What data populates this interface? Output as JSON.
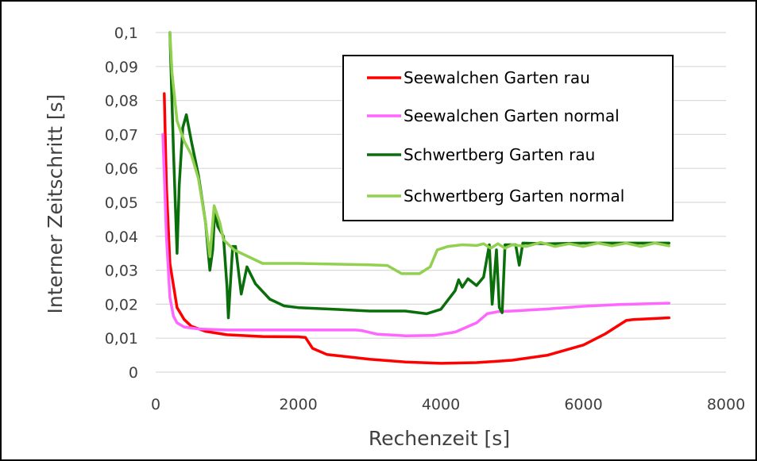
{
  "chart_data": {
    "type": "line",
    "title": "",
    "xlabel": "Rechenzeit [s]",
    "ylabel": "Interner Zeitschritt [s]",
    "xlim": [
      0,
      8000
    ],
    "ylim": [
      0,
      0.1
    ],
    "x_ticks": [
      0,
      2000,
      4000,
      6000,
      8000
    ],
    "x_tick_labels": [
      "0",
      "2000",
      "4000",
      "6000",
      "8000"
    ],
    "y_ticks": [
      0,
      0.01,
      0.02,
      0.03,
      0.04,
      0.05,
      0.06,
      0.07,
      0.08,
      0.09,
      0.1
    ],
    "y_tick_labels": [
      "0",
      "0,01",
      "0,02",
      "0,03",
      "0,04",
      "0,05",
      "0,06",
      "0,07",
      "0,08",
      "0,09",
      "0,1"
    ],
    "grid": "horizontal",
    "legend_position": "top-right",
    "series": [
      {
        "name": "Seewalchen Garten rau",
        "color": "#ff0000",
        "points": [
          [
            120,
            0.082
          ],
          [
            150,
            0.055
          ],
          [
            200,
            0.032
          ],
          [
            300,
            0.019
          ],
          [
            400,
            0.0155
          ],
          [
            500,
            0.0135
          ],
          [
            700,
            0.012
          ],
          [
            1000,
            0.011
          ],
          [
            1500,
            0.0105
          ],
          [
            2000,
            0.0104
          ],
          [
            2100,
            0.0102
          ],
          [
            2200,
            0.007
          ],
          [
            2400,
            0.0052
          ],
          [
            3000,
            0.0038
          ],
          [
            3500,
            0.003
          ],
          [
            4000,
            0.0026
          ],
          [
            4500,
            0.0028
          ],
          [
            5000,
            0.0035
          ],
          [
            5500,
            0.005
          ],
          [
            6000,
            0.008
          ],
          [
            6300,
            0.0112
          ],
          [
            6600,
            0.0152
          ],
          [
            6700,
            0.0155
          ],
          [
            7200,
            0.016
          ]
        ]
      },
      {
        "name": "Seewalchen Garten normal",
        "color": "#ff66ff",
        "points": [
          [
            100,
            0.07
          ],
          [
            150,
            0.04
          ],
          [
            200,
            0.022
          ],
          [
            250,
            0.0165
          ],
          [
            300,
            0.0145
          ],
          [
            400,
            0.0133
          ],
          [
            600,
            0.0127
          ],
          [
            1000,
            0.0124
          ],
          [
            2000,
            0.0124
          ],
          [
            2800,
            0.0124
          ],
          [
            2900,
            0.0122
          ],
          [
            3100,
            0.0112
          ],
          [
            3500,
            0.0107
          ],
          [
            3900,
            0.0108
          ],
          [
            4200,
            0.0118
          ],
          [
            4500,
            0.0145
          ],
          [
            4650,
            0.0172
          ],
          [
            4800,
            0.0178
          ],
          [
            5000,
            0.018
          ],
          [
            5500,
            0.0186
          ],
          [
            6000,
            0.0194
          ],
          [
            6500,
            0.0199
          ],
          [
            7200,
            0.0203
          ]
        ]
      },
      {
        "name": "Schwertberg Garten rau",
        "color": "#0a6e0a",
        "points": [
          [
            200,
            0.1
          ],
          [
            250,
            0.065
          ],
          [
            300,
            0.035
          ],
          [
            330,
            0.055
          ],
          [
            380,
            0.072
          ],
          [
            430,
            0.0758
          ],
          [
            500,
            0.068
          ],
          [
            600,
            0.058
          ],
          [
            700,
            0.044
          ],
          [
            760,
            0.03
          ],
          [
            800,
            0.036
          ],
          [
            830,
            0.048
          ],
          [
            870,
            0.043
          ],
          [
            950,
            0.04
          ],
          [
            1000,
            0.025
          ],
          [
            1020,
            0.016
          ],
          [
            1080,
            0.037
          ],
          [
            1120,
            0.037
          ],
          [
            1200,
            0.023
          ],
          [
            1280,
            0.031
          ],
          [
            1400,
            0.026
          ],
          [
            1600,
            0.0215
          ],
          [
            1800,
            0.0195
          ],
          [
            2000,
            0.019
          ],
          [
            2500,
            0.0185
          ],
          [
            3000,
            0.018
          ],
          [
            3500,
            0.018
          ],
          [
            3800,
            0.0172
          ],
          [
            4000,
            0.0185
          ],
          [
            4200,
            0.024
          ],
          [
            4250,
            0.0272
          ],
          [
            4300,
            0.025
          ],
          [
            4380,
            0.0275
          ],
          [
            4500,
            0.0255
          ],
          [
            4600,
            0.028
          ],
          [
            4680,
            0.0375
          ],
          [
            4720,
            0.02
          ],
          [
            4780,
            0.036
          ],
          [
            4820,
            0.019
          ],
          [
            4860,
            0.0175
          ],
          [
            4900,
            0.0375
          ],
          [
            4950,
            0.0375
          ],
          [
            5050,
            0.0375
          ],
          [
            5100,
            0.0315
          ],
          [
            5150,
            0.038
          ],
          [
            5500,
            0.0378
          ],
          [
            6000,
            0.038
          ],
          [
            6500,
            0.038
          ],
          [
            7200,
            0.038
          ]
        ]
      },
      {
        "name": "Schwertberg Garten normal",
        "color": "#92d050",
        "points": [
          [
            200,
            0.1
          ],
          [
            230,
            0.088
          ],
          [
            300,
            0.074
          ],
          [
            400,
            0.068
          ],
          [
            500,
            0.064
          ],
          [
            600,
            0.057
          ],
          [
            700,
            0.044
          ],
          [
            760,
            0.034
          ],
          [
            820,
            0.049
          ],
          [
            900,
            0.044
          ],
          [
            950,
            0.039
          ],
          [
            1100,
            0.036
          ],
          [
            1300,
            0.034
          ],
          [
            1500,
            0.032
          ],
          [
            2000,
            0.032
          ],
          [
            2500,
            0.0318
          ],
          [
            3000,
            0.0316
          ],
          [
            3250,
            0.0314
          ],
          [
            3450,
            0.029
          ],
          [
            3700,
            0.029
          ],
          [
            3850,
            0.031
          ],
          [
            3950,
            0.036
          ],
          [
            4100,
            0.037
          ],
          [
            4300,
            0.0375
          ],
          [
            4500,
            0.0373
          ],
          [
            4600,
            0.0378
          ],
          [
            4700,
            0.0365
          ],
          [
            4800,
            0.0378
          ],
          [
            4900,
            0.0365
          ],
          [
            5000,
            0.0375
          ],
          [
            5200,
            0.037
          ],
          [
            5400,
            0.0382
          ],
          [
            5600,
            0.037
          ],
          [
            5800,
            0.0378
          ],
          [
            6000,
            0.037
          ],
          [
            6200,
            0.038
          ],
          [
            6400,
            0.0372
          ],
          [
            6600,
            0.038
          ],
          [
            6800,
            0.037
          ],
          [
            7000,
            0.038
          ],
          [
            7200,
            0.0372
          ]
        ]
      }
    ]
  }
}
